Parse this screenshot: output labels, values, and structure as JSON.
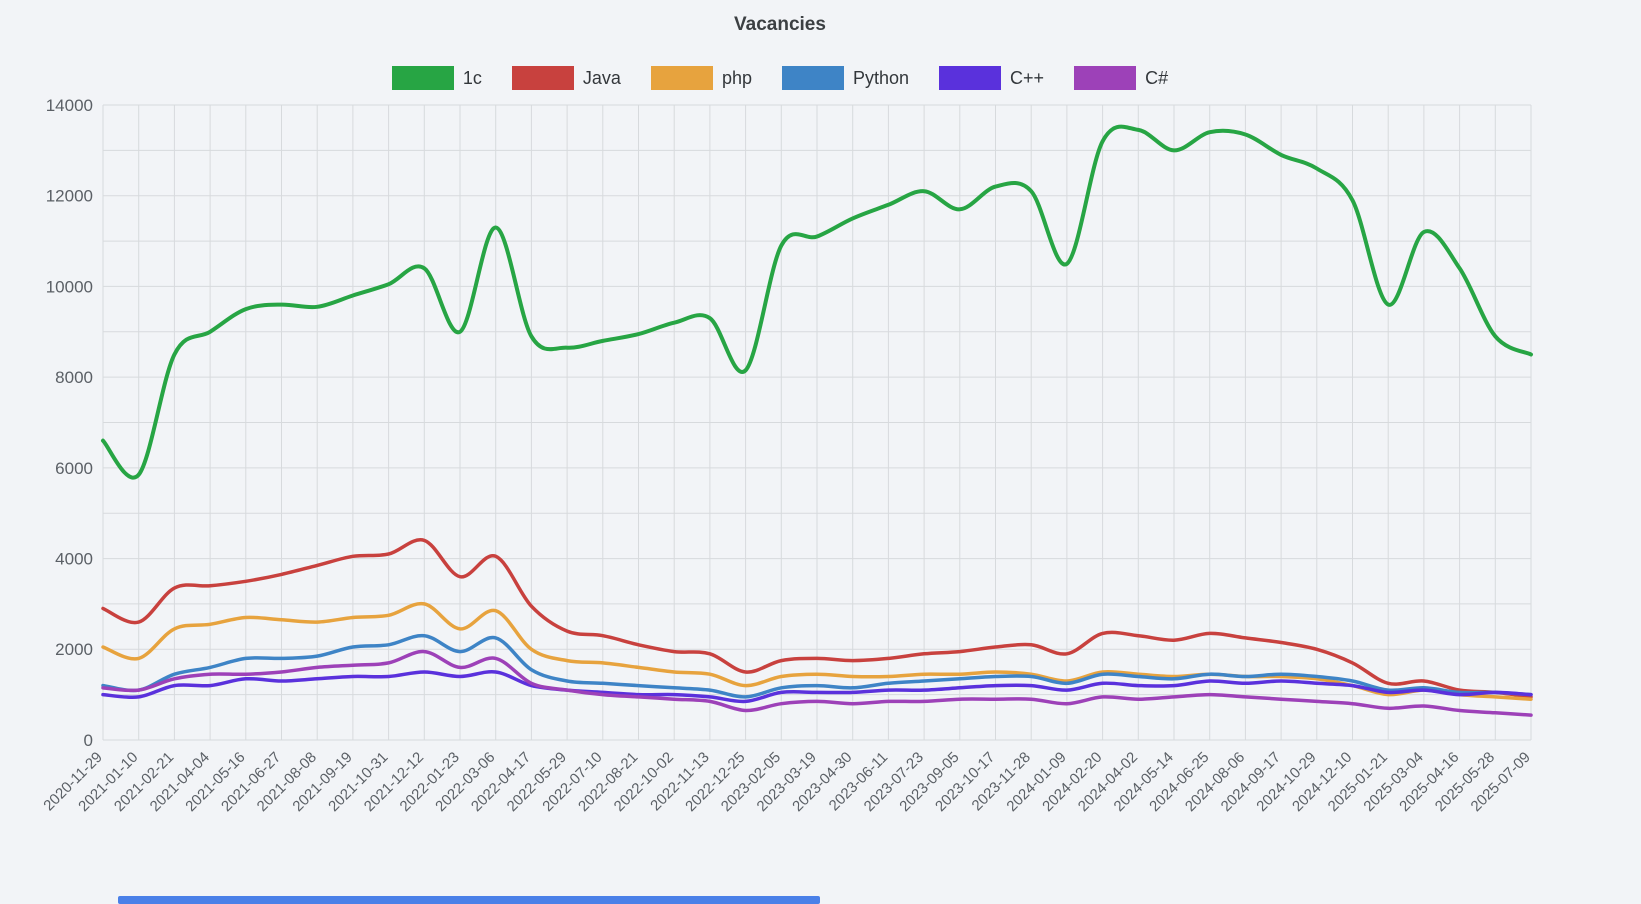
{
  "theme": {
    "background": "#f2f4f7",
    "grid": "#d7dadd",
    "tick": "#5b6066",
    "title": "#3c4043",
    "scrollbar": "#4a80e8"
  },
  "scrollbar": {
    "name": "horizontal-scrollbar"
  },
  "chart_data": {
    "type": "line",
    "title": "Vacancies",
    "xlabel": "",
    "ylabel": "",
    "ylim": [
      0,
      14000
    ],
    "grid": true,
    "grid_step_y": 1000,
    "label_step_y": 2000,
    "legend_position": "top",
    "categories": [
      "2020-11-29",
      "2021-01-10",
      "2021-02-21",
      "2021-04-04",
      "2021-05-16",
      "2021-06-27",
      "2021-08-08",
      "2021-09-19",
      "2021-10-31",
      "2021-12-12",
      "2022-01-23",
      "2022-03-06",
      "2022-04-17",
      "2022-05-29",
      "2022-07-10",
      "2022-08-21",
      "2022-10-02",
      "2022-11-13",
      "2022-12-25",
      "2023-02-05",
      "2023-03-19",
      "2023-04-30",
      "2023-06-11",
      "2023-07-23",
      "2023-09-05",
      "2023-10-17",
      "2023-11-28",
      "2024-01-09",
      "2024-02-20",
      "2024-04-02",
      "2024-05-14",
      "2024-06-25",
      "2024-08-06",
      "2024-09-17",
      "2024-10-29",
      "2024-12-10",
      "2025-01-21",
      "2025-03-04",
      "2025-04-16",
      "2025-05-28",
      "2025-07-09"
    ],
    "series": [
      {
        "name": "1c",
        "color": "#27a544",
        "width": 4,
        "values": [
          6600,
          5850,
          8500,
          9000,
          9500,
          9600,
          9550,
          9800,
          10050,
          10400,
          9000,
          11300,
          8900,
          8650,
          8800,
          8950,
          9200,
          9300,
          8150,
          10900,
          11100,
          11500,
          11800,
          12100,
          11700,
          12200,
          12100,
          10500,
          13200,
          13450,
          13000,
          13400,
          13350,
          12900,
          12600,
          11900,
          9600,
          11200,
          10400,
          8900,
          8500
        ]
      },
      {
        "name": "Java",
        "color": "#c8413e",
        "width": 3.5,
        "values": [
          2900,
          2600,
          3350,
          3400,
          3500,
          3650,
          3850,
          4050,
          4100,
          4400,
          3600,
          4050,
          2950,
          2400,
          2300,
          2100,
          1950,
          1900,
          1500,
          1750,
          1800,
          1750,
          1800,
          1900,
          1950,
          2050,
          2100,
          1900,
          2350,
          2300,
          2200,
          2350,
          2250,
          2150,
          2000,
          1700,
          1250,
          1300,
          1100,
          1050,
          950
        ]
      },
      {
        "name": "php",
        "color": "#e7a33e",
        "width": 3.5,
        "values": [
          2050,
          1800,
          2450,
          2550,
          2700,
          2650,
          2600,
          2700,
          2750,
          3000,
          2450,
          2850,
          2000,
          1750,
          1700,
          1600,
          1500,
          1450,
          1200,
          1400,
          1450,
          1400,
          1400,
          1450,
          1450,
          1500,
          1450,
          1300,
          1500,
          1450,
          1400,
          1450,
          1400,
          1400,
          1350,
          1200,
          1000,
          1100,
          1000,
          950,
          900
        ]
      },
      {
        "name": "Python",
        "color": "#3e84c6",
        "width": 3.5,
        "values": [
          1200,
          1100,
          1450,
          1600,
          1800,
          1800,
          1850,
          2050,
          2100,
          2300,
          1950,
          2250,
          1550,
          1300,
          1250,
          1200,
          1150,
          1100,
          950,
          1150,
          1200,
          1150,
          1250,
          1300,
          1350,
          1400,
          1400,
          1250,
          1450,
          1400,
          1350,
          1450,
          1400,
          1450,
          1400,
          1300,
          1100,
          1150,
          1050,
          1050,
          1000
        ]
      },
      {
        "name": "C++",
        "color": "#5a31dc",
        "width": 3.5,
        "values": [
          1000,
          950,
          1200,
          1200,
          1350,
          1300,
          1350,
          1400,
          1400,
          1500,
          1400,
          1500,
          1200,
          1100,
          1050,
          1000,
          1000,
          950,
          850,
          1050,
          1050,
          1050,
          1100,
          1100,
          1150,
          1200,
          1200,
          1100,
          1250,
          1200,
          1200,
          1300,
          1250,
          1300,
          1250,
          1200,
          1050,
          1100,
          1000,
          1050,
          1000
        ]
      },
      {
        "name": "C#",
        "color": "#9d41b8",
        "width": 3.5,
        "values": [
          1150,
          1100,
          1350,
          1450,
          1450,
          1500,
          1600,
          1650,
          1700,
          1950,
          1600,
          1800,
          1250,
          1100,
          1000,
          950,
          900,
          850,
          650,
          800,
          850,
          800,
          850,
          850,
          900,
          900,
          900,
          800,
          950,
          900,
          950,
          1000,
          950,
          900,
          850,
          800,
          700,
          750,
          650,
          600,
          550
        ]
      }
    ]
  }
}
